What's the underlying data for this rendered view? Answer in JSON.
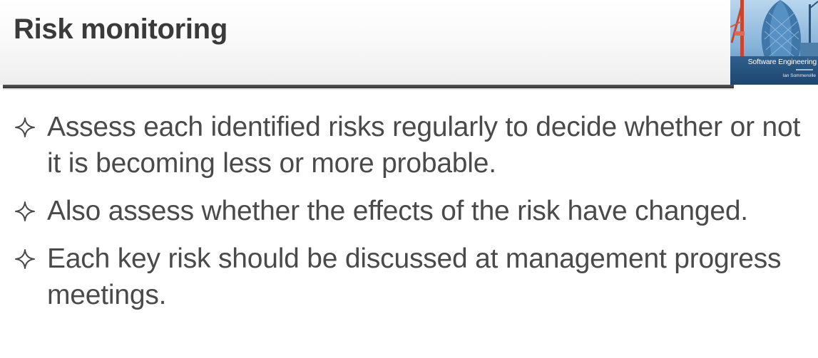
{
  "slide": {
    "title": "Risk monitoring",
    "cover": {
      "title": "Software Engineering",
      "author": "Ian Sommerville",
      "icon": "book-cover-image"
    },
    "bullets": [
      {
        "text": "Assess each identified risks regularly to decide whether or not it is becoming less or more probable.",
        "icon": "four-point-star-icon"
      },
      {
        "text": "Also assess whether the effects of the risk have changed.",
        "icon": "four-point-star-icon"
      },
      {
        "text": "Each key risk should be discussed at management progress meetings.",
        "icon": "four-point-star-icon"
      }
    ],
    "colors": {
      "title": "#3a3a3a",
      "body": "#4a4a4a",
      "rule": "#3c3c3c",
      "cover_band": "#2f5f8d"
    }
  }
}
